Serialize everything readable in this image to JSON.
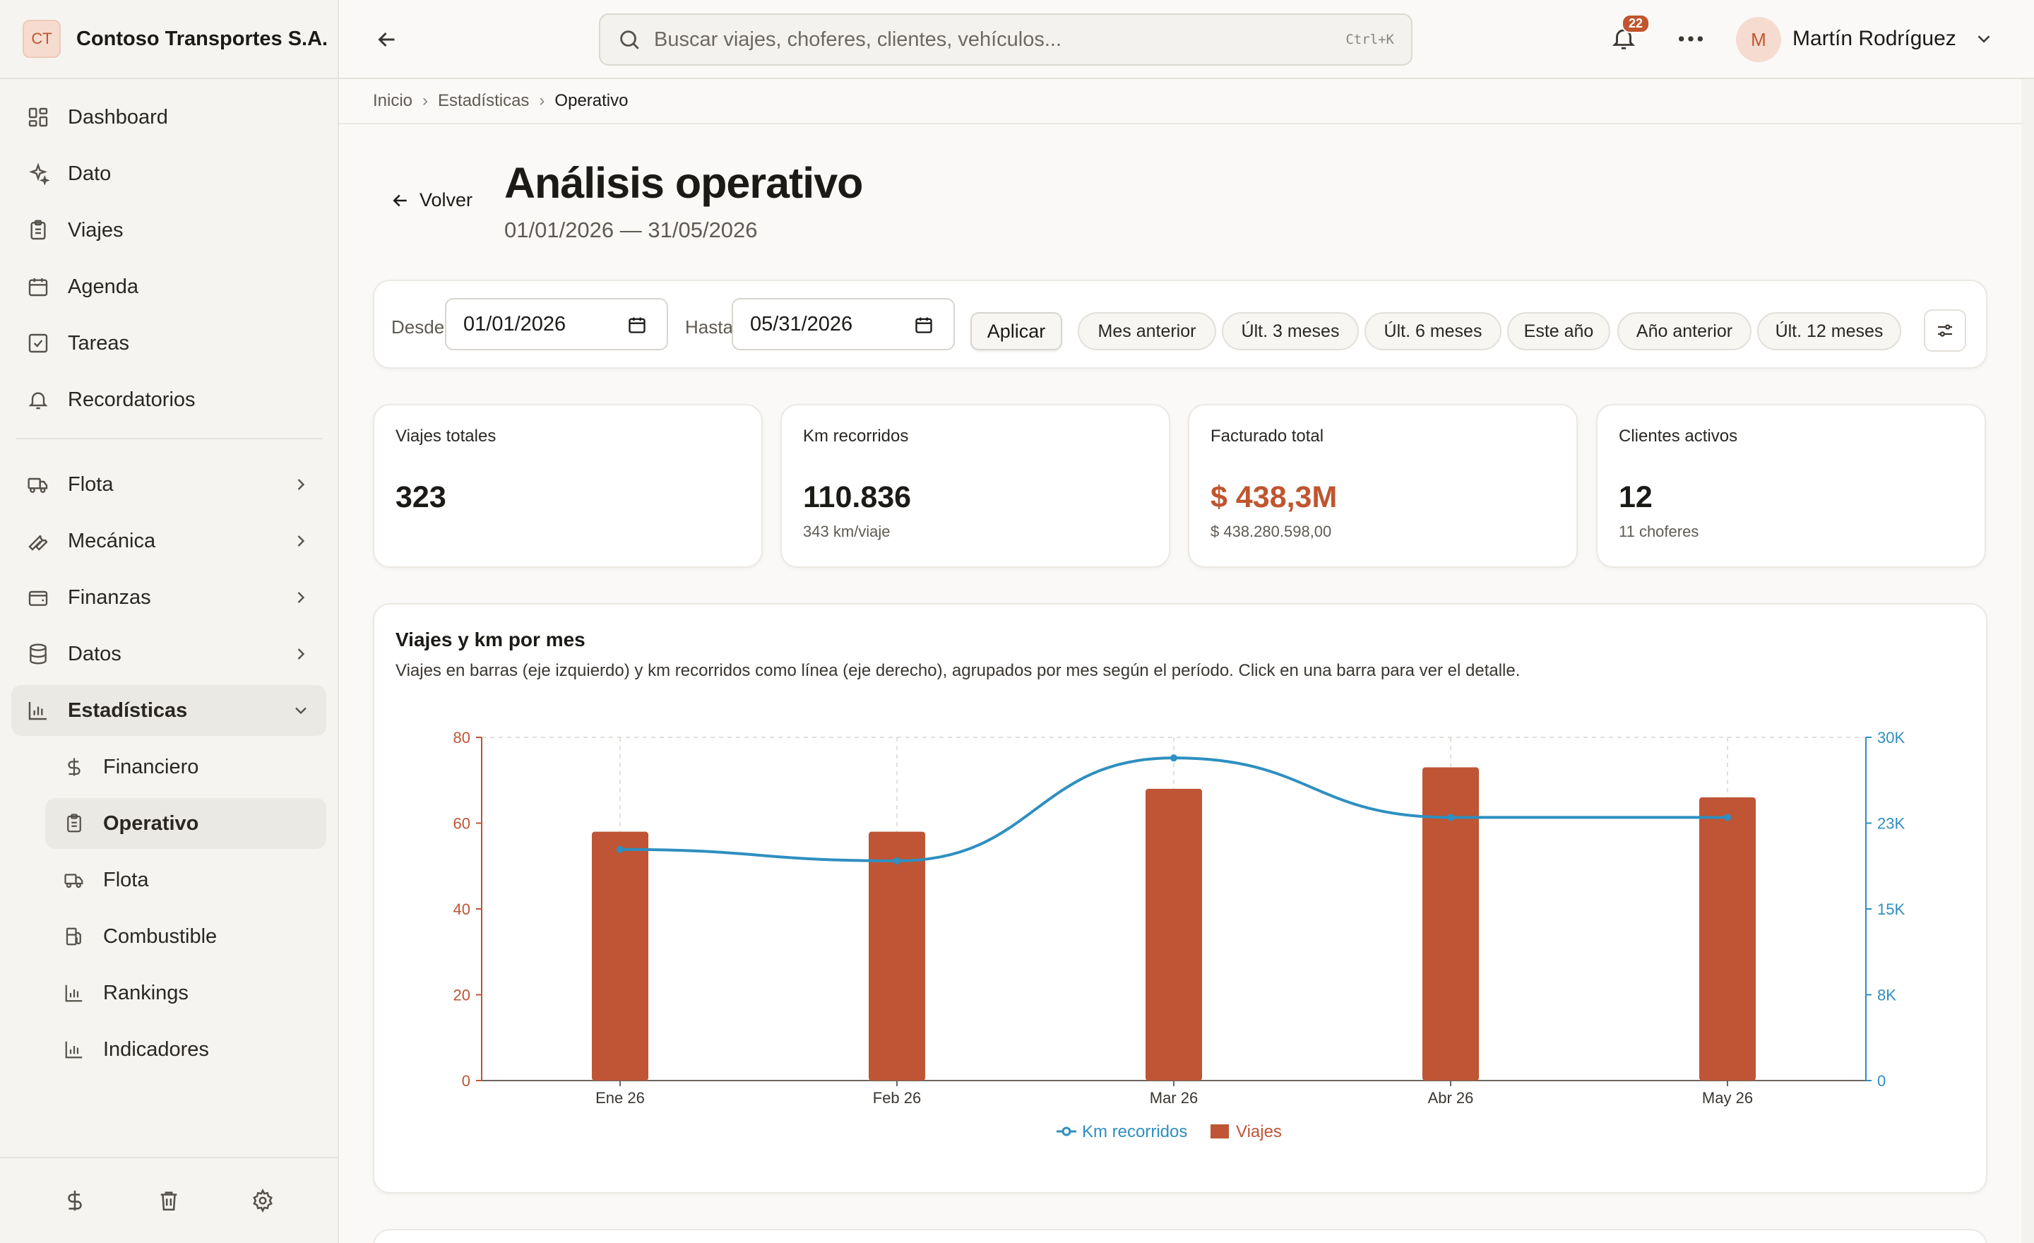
{
  "brand": {
    "badge": "CT",
    "name": "Contoso Transportes S.A."
  },
  "sidebar": {
    "items": [
      {
        "label": "Dashboard",
        "icon": "dashboard-icon"
      },
      {
        "label": "Dato",
        "icon": "sparkles-icon"
      },
      {
        "label": "Viajes",
        "icon": "clipboard-icon"
      },
      {
        "label": "Agenda",
        "icon": "calendar-icon"
      },
      {
        "label": "Tareas",
        "icon": "checkbox-icon"
      },
      {
        "label": "Recordatorios",
        "icon": "bell-icon"
      }
    ],
    "groups": [
      {
        "label": "Flota",
        "icon": "truck-icon"
      },
      {
        "label": "Mecánica",
        "icon": "wrench-icon"
      },
      {
        "label": "Finanzas",
        "icon": "wallet-icon"
      },
      {
        "label": "Datos",
        "icon": "database-icon"
      },
      {
        "label": "Estadísticas",
        "icon": "bar-chart-icon"
      }
    ],
    "sub_items": [
      {
        "label": "Financiero",
        "icon": "dollar-icon"
      },
      {
        "label": "Operativo",
        "icon": "clipboard-icon"
      },
      {
        "label": "Flota",
        "icon": "truck-icon"
      },
      {
        "label": "Combustible",
        "icon": "fuel-icon"
      },
      {
        "label": "Rankings",
        "icon": "bar-chart-icon"
      },
      {
        "label": "Indicadores",
        "icon": "bar-chart-icon"
      }
    ],
    "footer_icons": [
      "dollar-icon",
      "trash-icon",
      "gear-icon"
    ]
  },
  "topbar": {
    "search_placeholder": "Buscar viajes, choferes, clientes, vehículos...",
    "search_shortcut": "Ctrl+K",
    "notifications_count": "22",
    "user_initial": "M",
    "user_name": "Martín Rodríguez"
  },
  "breadcrumb": {
    "items": [
      "Inicio",
      "Estadísticas"
    ],
    "current": "Operativo"
  },
  "page": {
    "back_label": "Volver",
    "title": "Análisis operativo",
    "subtitle": "01/01/2026 — 31/05/2026"
  },
  "filters": {
    "from_label": "Desde",
    "from_value": "01/01/2026",
    "to_label": "Hasta",
    "to_value": "05/31/2026",
    "apply_label": "Aplicar",
    "presets": [
      "Mes anterior",
      "Últ. 3 meses",
      "Últ. 6 meses",
      "Este año",
      "Año anterior",
      "Últ. 12 meses"
    ]
  },
  "kpis": [
    {
      "label": "Viajes totales",
      "value": "323",
      "sub": ""
    },
    {
      "label": "Km recorridos",
      "value": "110.836",
      "sub": "343 km/viaje"
    },
    {
      "label": "Facturado total",
      "value": "$ 438,3M",
      "sub": "$ 438.280.598,00"
    },
    {
      "label": "Clientes activos",
      "value": "12",
      "sub": "11 choferes"
    }
  ],
  "colors": {
    "accent": "#c0552f",
    "bar": "#bf5535",
    "line": "#2e8fc0"
  },
  "chart_data": {
    "type": "bar",
    "title": "Viajes y km por mes",
    "subtitle": "Viajes en barras (eje izquierdo) y km recorridos como línea (eje derecho), agrupados por mes según el período. Click en una barra para ver el detalle.",
    "categories": [
      "Ene 26",
      "Feb 26",
      "Mar 26",
      "Abr 26",
      "May 26"
    ],
    "series": [
      {
        "name": "Viajes",
        "type": "bar",
        "axis": "left",
        "values": [
          58,
          58,
          68,
          73,
          66
        ]
      },
      {
        "name": "Km recorridos",
        "type": "line",
        "axis": "right",
        "values": [
          20200,
          19200,
          28200,
          23000,
          23000
        ]
      }
    ],
    "y_left": {
      "ylim": [
        0,
        80
      ],
      "ticks": [
        "0",
        "20",
        "40",
        "60",
        "80"
      ]
    },
    "y_right": {
      "ylim": [
        0,
        30000
      ],
      "ticks": [
        "0",
        "8K",
        "15K",
        "23K",
        "30K"
      ]
    },
    "grid": "vertical dashed",
    "legend": "bottom-center"
  }
}
